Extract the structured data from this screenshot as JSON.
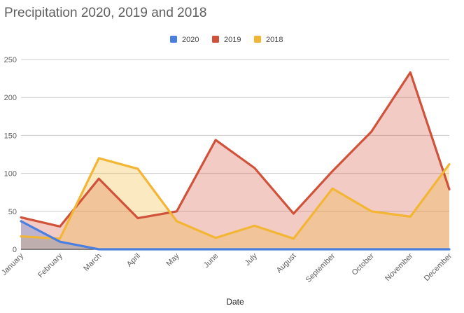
{
  "chart_data": {
    "type": "area",
    "title": "Precipitation 2020, 2019 and 2018",
    "xlabel": "Date",
    "ylabel": "",
    "categories": [
      "January",
      "February",
      "March",
      "April",
      "May",
      "June",
      "July",
      "August",
      "September",
      "October",
      "November",
      "December"
    ],
    "ylim": [
      0,
      250
    ],
    "yticks": [
      0,
      50,
      100,
      150,
      200,
      250
    ],
    "grid": true,
    "legend_position": "top-center",
    "series": [
      {
        "name": "2020",
        "color": "#4a7fe0",
        "values": [
          37,
          10,
          0,
          0,
          0,
          0,
          0,
          0,
          0,
          0,
          0,
          0
        ]
      },
      {
        "name": "2019",
        "color": "#d0523a",
        "values": [
          42,
          30,
          93,
          41,
          50,
          144,
          107,
          47,
          103,
          155,
          233,
          79
        ]
      },
      {
        "name": "2018",
        "color": "#f3b634",
        "values": [
          17,
          14,
          120,
          106,
          37,
          15,
          31,
          14,
          80,
          50,
          43,
          112
        ]
      }
    ]
  }
}
